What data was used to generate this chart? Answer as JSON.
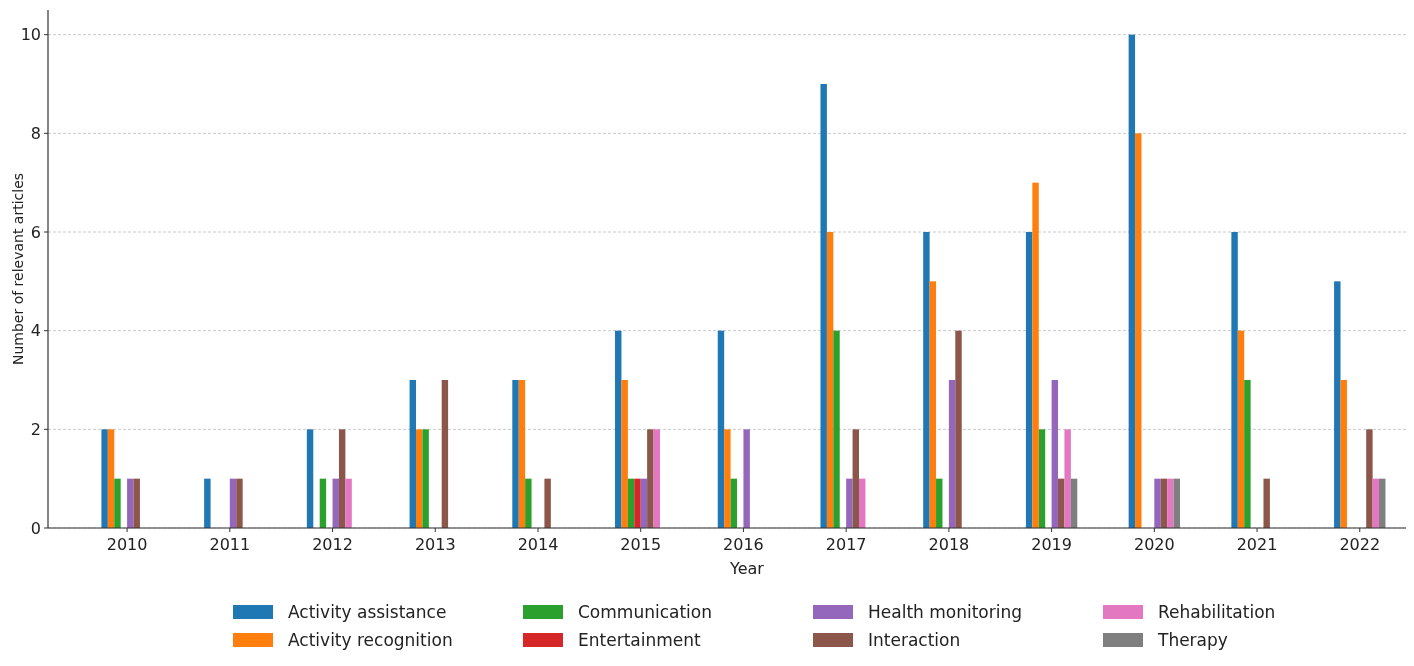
{
  "chart_data": {
    "type": "bar",
    "xlabel": "Year",
    "ylabel": "Number of relevant articles",
    "categories": [
      "2010",
      "2011",
      "2012",
      "2013",
      "2014",
      "2015",
      "2016",
      "2017",
      "2018",
      "2019",
      "2020",
      "2021",
      "2022"
    ],
    "series": [
      {
        "name": "Activity assistance",
        "color": "#1f77b4",
        "values": [
          2,
          1,
          2,
          3,
          3,
          4,
          4,
          9,
          6,
          6,
          10,
          6,
          5
        ]
      },
      {
        "name": "Activity recognition",
        "color": "#ff7f0e",
        "values": [
          2,
          0,
          0,
          2,
          3,
          3,
          2,
          6,
          5,
          7,
          8,
          4,
          3
        ]
      },
      {
        "name": "Communication",
        "color": "#2ca02c",
        "values": [
          1,
          0,
          1,
          2,
          1,
          1,
          1,
          4,
          1,
          2,
          0,
          3,
          0
        ]
      },
      {
        "name": "Entertainment",
        "color": "#d62728",
        "values": [
          0,
          0,
          0,
          0,
          0,
          1,
          0,
          0,
          0,
          0,
          0,
          0,
          0
        ]
      },
      {
        "name": "Health monitoring",
        "color": "#9467bd",
        "values": [
          1,
          1,
          1,
          0,
          0,
          1,
          2,
          1,
          3,
          3,
          1,
          0,
          0
        ]
      },
      {
        "name": "Interaction",
        "color": "#8c564b",
        "values": [
          1,
          1,
          2,
          3,
          1,
          2,
          0,
          2,
          4,
          1,
          1,
          1,
          2
        ]
      },
      {
        "name": "Rehabilitation",
        "color": "#e377c2",
        "values": [
          0,
          0,
          1,
          0,
          0,
          2,
          0,
          1,
          0,
          2,
          1,
          0,
          1
        ]
      },
      {
        "name": "Therapy",
        "color": "#7f7f7f",
        "values": [
          0,
          0,
          0,
          0,
          0,
          0,
          0,
          0,
          0,
          1,
          1,
          0,
          1
        ]
      }
    ],
    "ylim": [
      0,
      10.5
    ],
    "yticks": [
      0,
      2,
      4,
      6,
      8,
      10
    ],
    "grid": "y",
    "legend": "bottom"
  }
}
